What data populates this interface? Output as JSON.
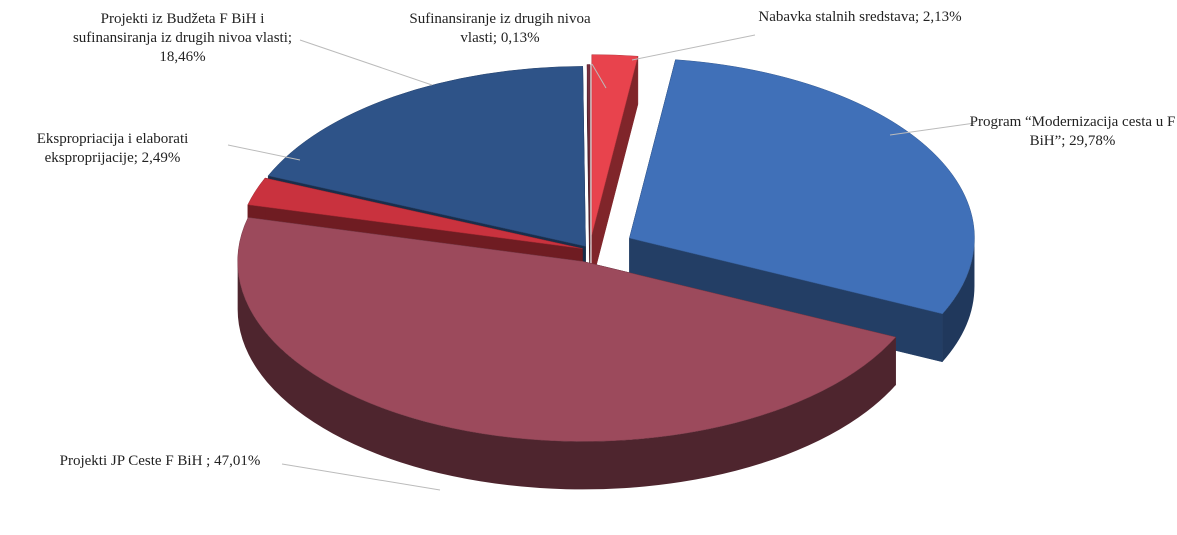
{
  "chart_data": {
    "type": "pie",
    "categories": [
      "Nabavka stalnih sredstava;",
      "Program “Modernizacija cesta u F BiH”;",
      "Projekti JP Ceste F BiH ;",
      "Ekspropriacija i elaborati eksproprijacije;",
      "Projekti iz Budžeta F BiH i sufinansiranja iz drugih nivoa vlasti;",
      "Sufinansiranje iz drugih nivoa vlasti;"
    ],
    "values": [
      2.13,
      29.78,
      47.01,
      2.49,
      18.46,
      0.13
    ],
    "value_labels": [
      "2,13%",
      "29,78%",
      "47,01%",
      "2,49%",
      "18,46%",
      "0,13%"
    ],
    "colors": [
      "#e8434d",
      "#4070b8",
      "#9c4a5c",
      "#c9323e",
      "#2e5388",
      "#7a2f3f"
    ]
  }
}
